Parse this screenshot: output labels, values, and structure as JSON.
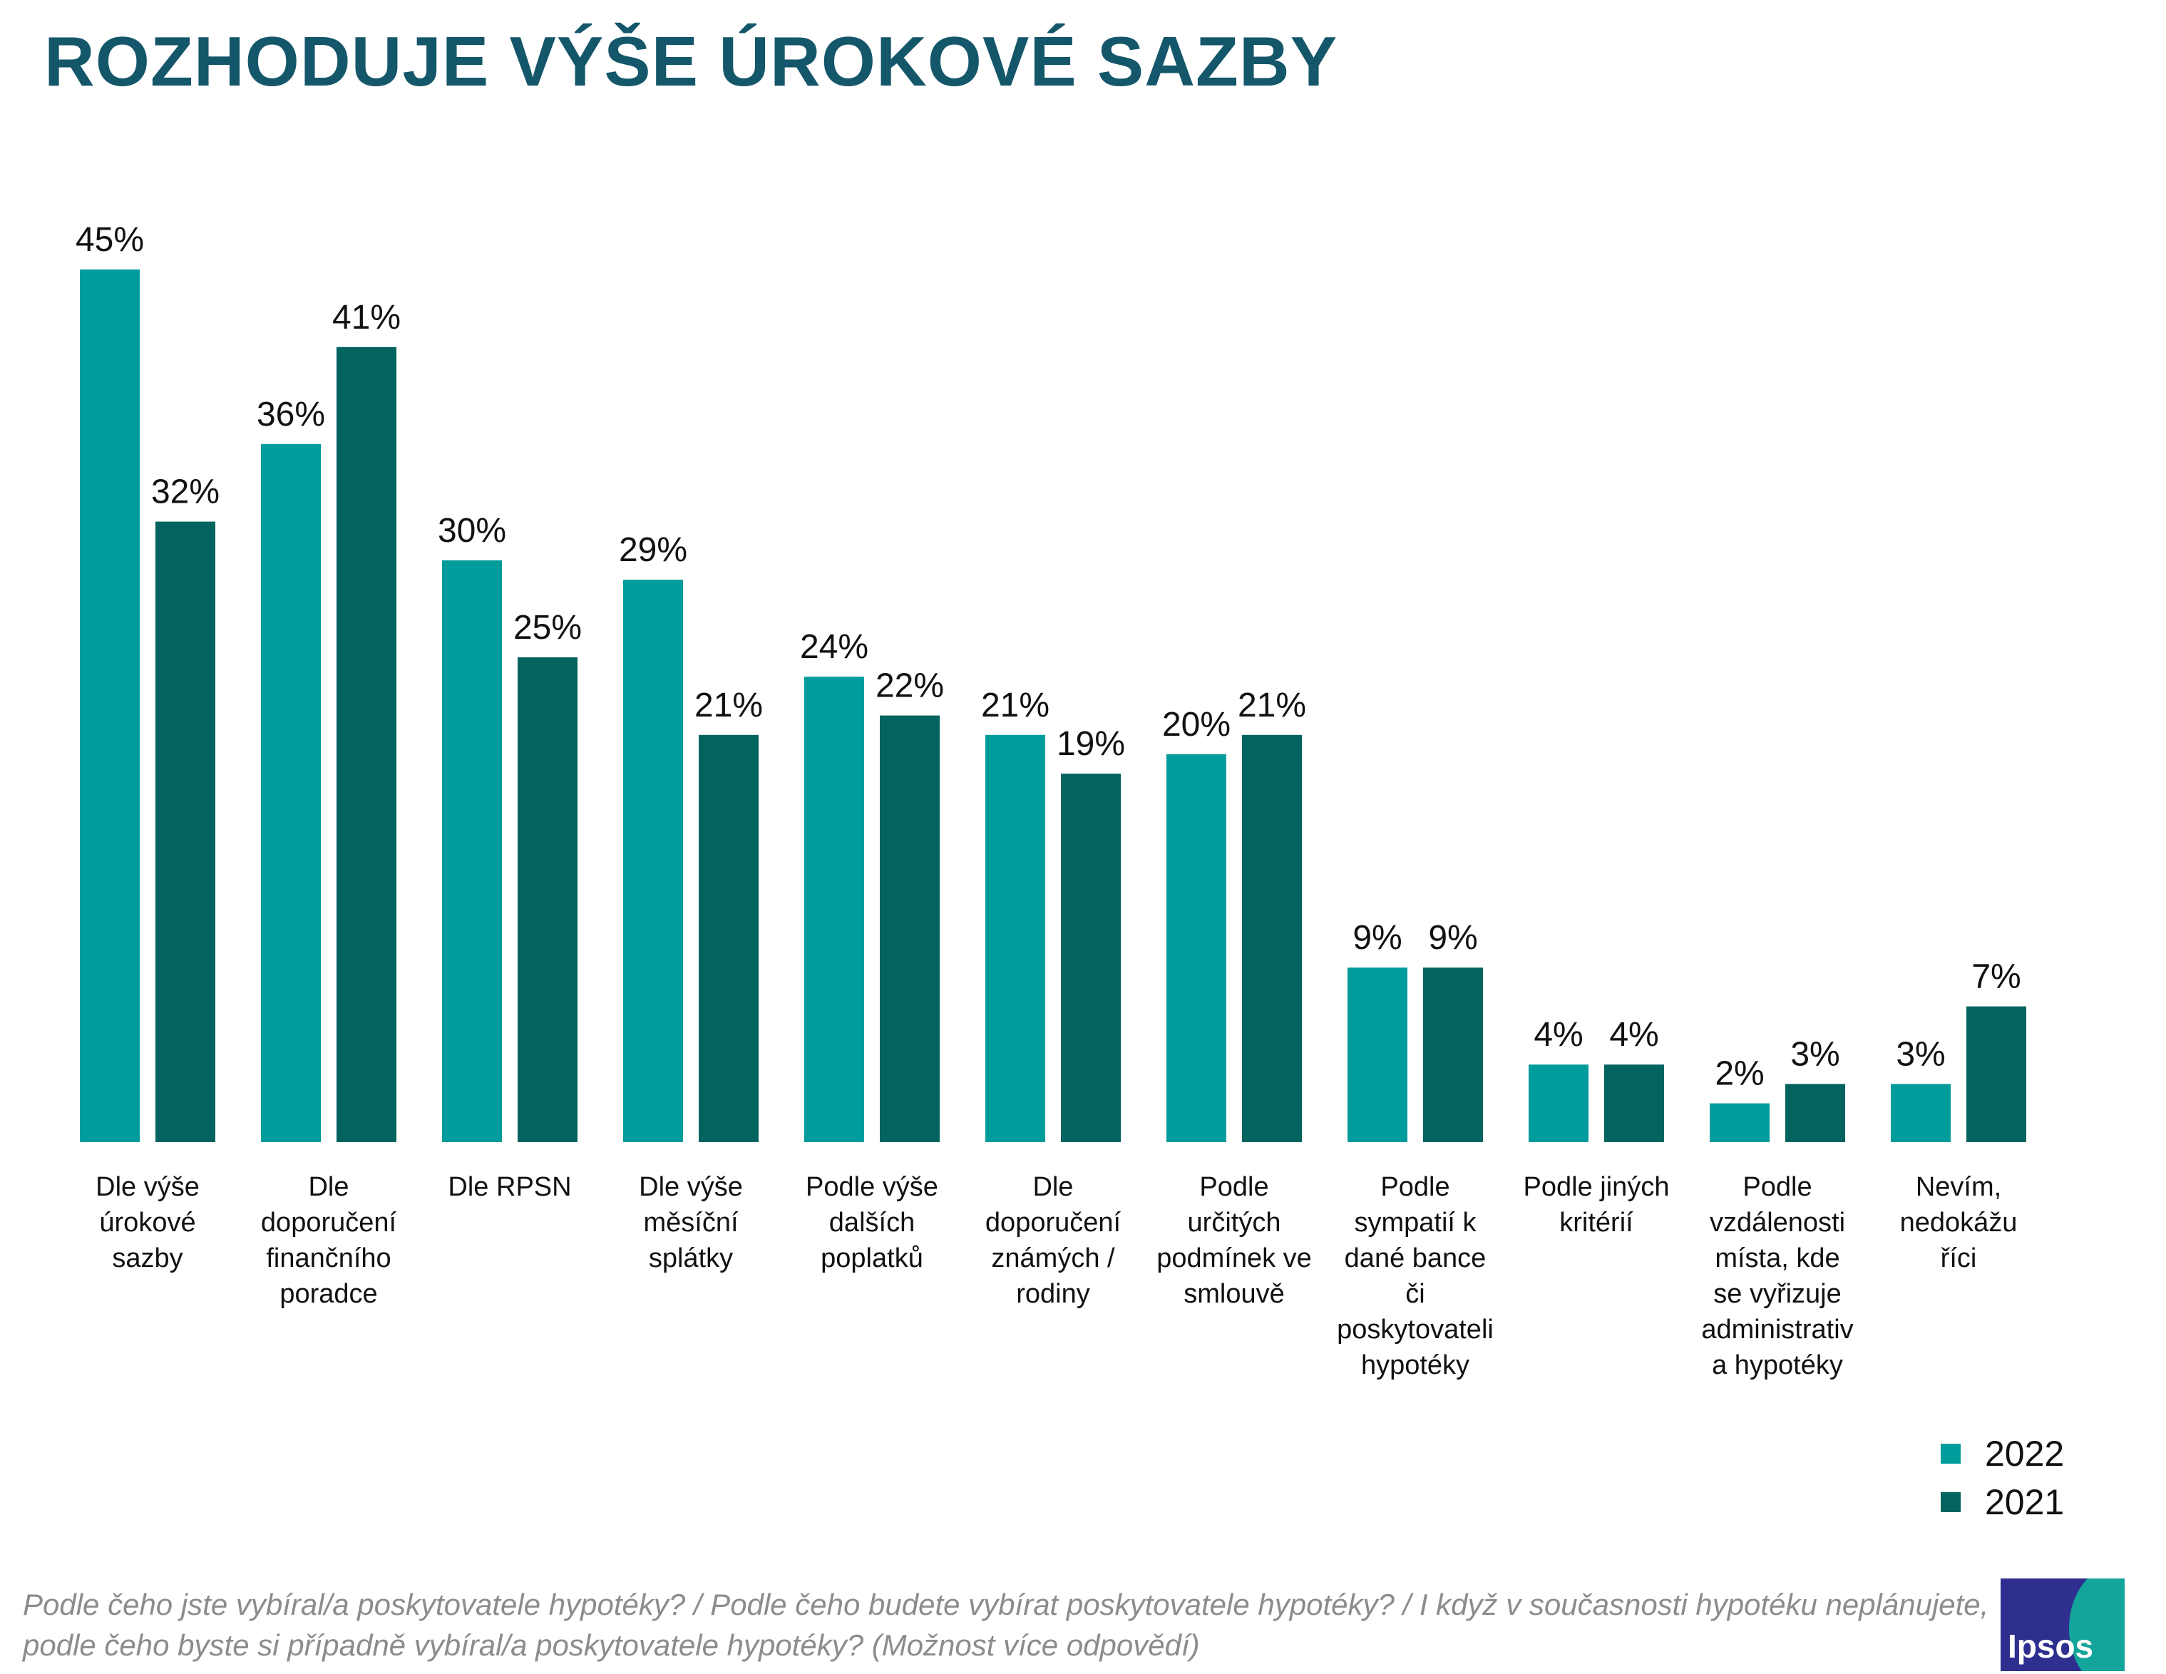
{
  "title": "ROZHODUJE VÝŠE ÚROKOVÉ SAZBY",
  "colors": {
    "title": "#14566a",
    "series_2022": "#009b9b",
    "series_2021": "#02635f"
  },
  "chart_data": {
    "type": "bar",
    "ylim": [
      0,
      45
    ],
    "grid": false,
    "legend_position": "bottom-right",
    "categories": [
      [
        "Dle výše",
        "úrokové",
        "sazby"
      ],
      [
        "Dle",
        "doporučení",
        "finančního",
        "poradce"
      ],
      [
        "Dle RPSN"
      ],
      [
        "Dle výše",
        "měsíční",
        "splátky"
      ],
      [
        "Podle výše",
        "dalších",
        "poplatků"
      ],
      [
        "Dle",
        "doporučení",
        "známých /",
        "rodiny"
      ],
      [
        "Podle",
        "určitých",
        "podmínek ve",
        "smlouvě"
      ],
      [
        "Podle",
        "sympatií k",
        "dané bance",
        "či",
        "poskytovateli",
        "hypotéky"
      ],
      [
        "Podle jiných",
        "kritérií"
      ],
      [
        "Podle",
        "vzdálenosti",
        "místa, kde",
        "se vyřizuje",
        "administrativ",
        "a hypotéky"
      ],
      [
        "Nevím,",
        "nedokážu",
        "říci"
      ]
    ],
    "series": [
      {
        "name": "2022",
        "values": [
          45,
          36,
          30,
          29,
          24,
          21,
          20,
          9,
          4,
          2,
          3
        ],
        "labels": [
          "45%",
          "36%",
          "30%",
          "29%",
          "24%",
          "21%",
          "20%",
          "9%",
          "4%",
          "2%",
          "3%"
        ]
      },
      {
        "name": "2021",
        "values": [
          32,
          41,
          25,
          21,
          22,
          19,
          21,
          9,
          4,
          3,
          7
        ],
        "labels": [
          "32%",
          "41%",
          "25%",
          "21%",
          "22%",
          "19%",
          "21%",
          "9%",
          "4%",
          "3%",
          "7%"
        ]
      }
    ]
  },
  "note": "Podle čeho jste vybíral/a poskytovatele hypotéky? / Podle čeho budete vybírat poskytovatele hypotéky? / I když v současnosti hypotéku neplánujete, podle čeho byste si případně vybíral/a poskytovatele hypotéky? (Možnost více odpovědí)",
  "logo": {
    "text": "Ipsos"
  }
}
